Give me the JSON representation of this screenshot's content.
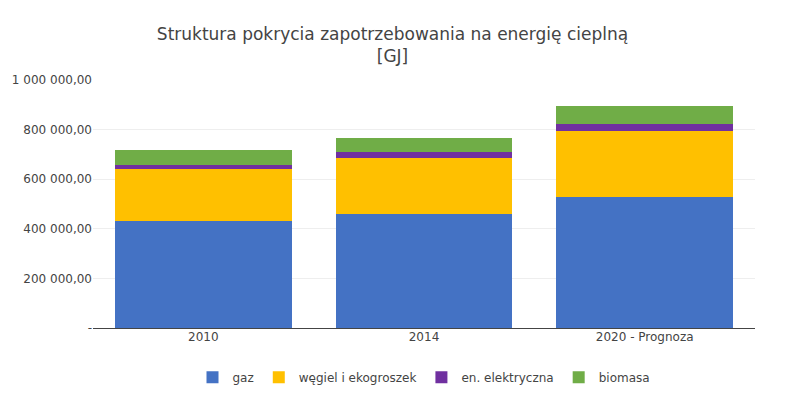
{
  "chart_data": {
    "type": "bar",
    "stacked": true,
    "title": "Struktura pokrycia zapotrzebowania na energię cieplną\n[GJ]",
    "categories": [
      "2010",
      "2014",
      "2020 - Prognoza"
    ],
    "series": [
      {
        "name": "gaz",
        "color": "#4472C4",
        "values": [
          430000,
          460000,
          530000
        ]
      },
      {
        "name": "węgiel i ekogroszek",
        "color": "#FFC000",
        "values": [
          210000,
          225000,
          265000
        ]
      },
      {
        "name": "en. elektryczna",
        "color": "#7030A0",
        "values": [
          18000,
          23000,
          28000
        ]
      },
      {
        "name": "biomasa",
        "color": "#70AD47",
        "values": [
          60000,
          58000,
          72000
        ]
      }
    ],
    "ylim": [
      0,
      1000000
    ],
    "yticks": [
      {
        "value": 0,
        "label": "-"
      },
      {
        "value": 200000,
        "label": "200 000,00"
      },
      {
        "value": 400000,
        "label": "400 000,00"
      },
      {
        "value": 600000,
        "label": "600 000,00"
      },
      {
        "value": 800000,
        "label": "800 000,00"
      },
      {
        "value": 1000000,
        "label": "1 000 000,00"
      }
    ],
    "grid": true,
    "legend": "bottom"
  }
}
